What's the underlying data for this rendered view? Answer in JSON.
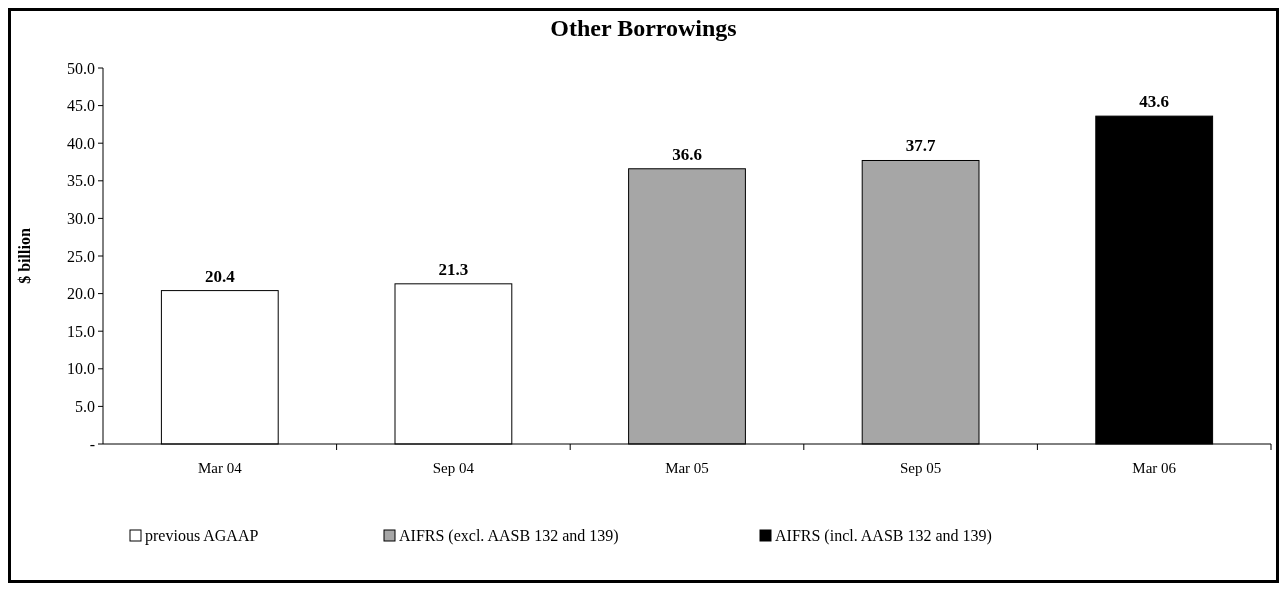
{
  "chart_data": {
    "type": "bar",
    "title": "Other Borrowings",
    "ylabel": "$ billion",
    "categories": [
      "Mar 04",
      "Sep 04",
      "Mar 05",
      "Sep 05",
      "Mar 06"
    ],
    "series": [
      {
        "name": "previous AGAAP",
        "color": "#ffffff",
        "values": [
          20.4,
          21.3,
          null,
          null,
          null
        ]
      },
      {
        "name": "AIFRS (excl. AASB 132 and 139)",
        "color": "#a6a6a6",
        "values": [
          null,
          null,
          36.6,
          37.7,
          null
        ]
      },
      {
        "name": "AIFRS (incl. AASB 132 and 139)",
        "color": "#000000",
        "values": [
          null,
          null,
          null,
          null,
          43.6
        ]
      }
    ],
    "stacked": true,
    "ylim": [
      0,
      50
    ],
    "yticks": [
      {
        "value": 0,
        "label": "-"
      },
      {
        "value": 5,
        "label": "5.0"
      },
      {
        "value": 10,
        "label": "10.0"
      },
      {
        "value": 15,
        "label": "15.0"
      },
      {
        "value": 20,
        "label": "20.0"
      },
      {
        "value": 25,
        "label": "25.0"
      },
      {
        "value": 30,
        "label": "30.0"
      },
      {
        "value": 35,
        "label": "35.0"
      },
      {
        "value": 40,
        "label": "40.0"
      },
      {
        "value": 45,
        "label": "45.0"
      },
      {
        "value": 50,
        "label": "50.0"
      }
    ],
    "data_labels": true,
    "legend": "bottom"
  }
}
